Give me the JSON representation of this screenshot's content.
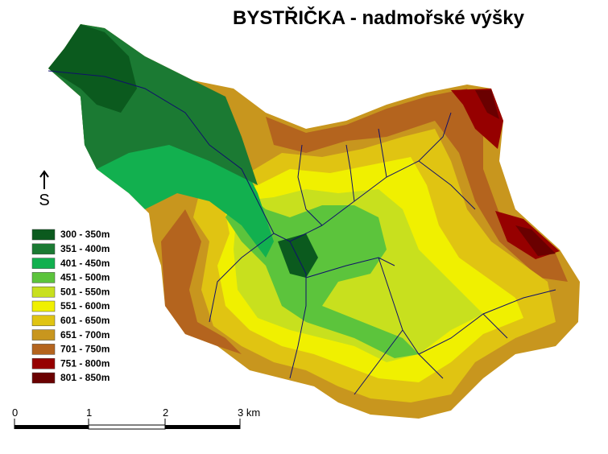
{
  "title": "BYSTŘIČKA - nadmořské výšky",
  "north_arrow": "S",
  "legend": [
    {
      "label": "300 - 350m",
      "color": "#0b5a1e"
    },
    {
      "label": "351 - 400m",
      "color": "#1b7a33"
    },
    {
      "label": "401 - 450m",
      "color": "#12b04f"
    },
    {
      "label": "451 - 500m",
      "color": "#5cc43c"
    },
    {
      "label": "501 - 550m",
      "color": "#c8e01e"
    },
    {
      "label": "551 - 600m",
      "color": "#f0f000"
    },
    {
      "label": "601 - 650m",
      "color": "#e0c412"
    },
    {
      "label": "651 - 700m",
      "color": "#c8961e"
    },
    {
      "label": "701 - 750m",
      "color": "#b4641e"
    },
    {
      "label": "751 - 800m",
      "color": "#960000"
    },
    {
      "label": "801 - 850m",
      "color": "#6a0000"
    }
  ],
  "scale_bar": [
    "0",
    "1",
    "2",
    "3 km"
  ]
}
